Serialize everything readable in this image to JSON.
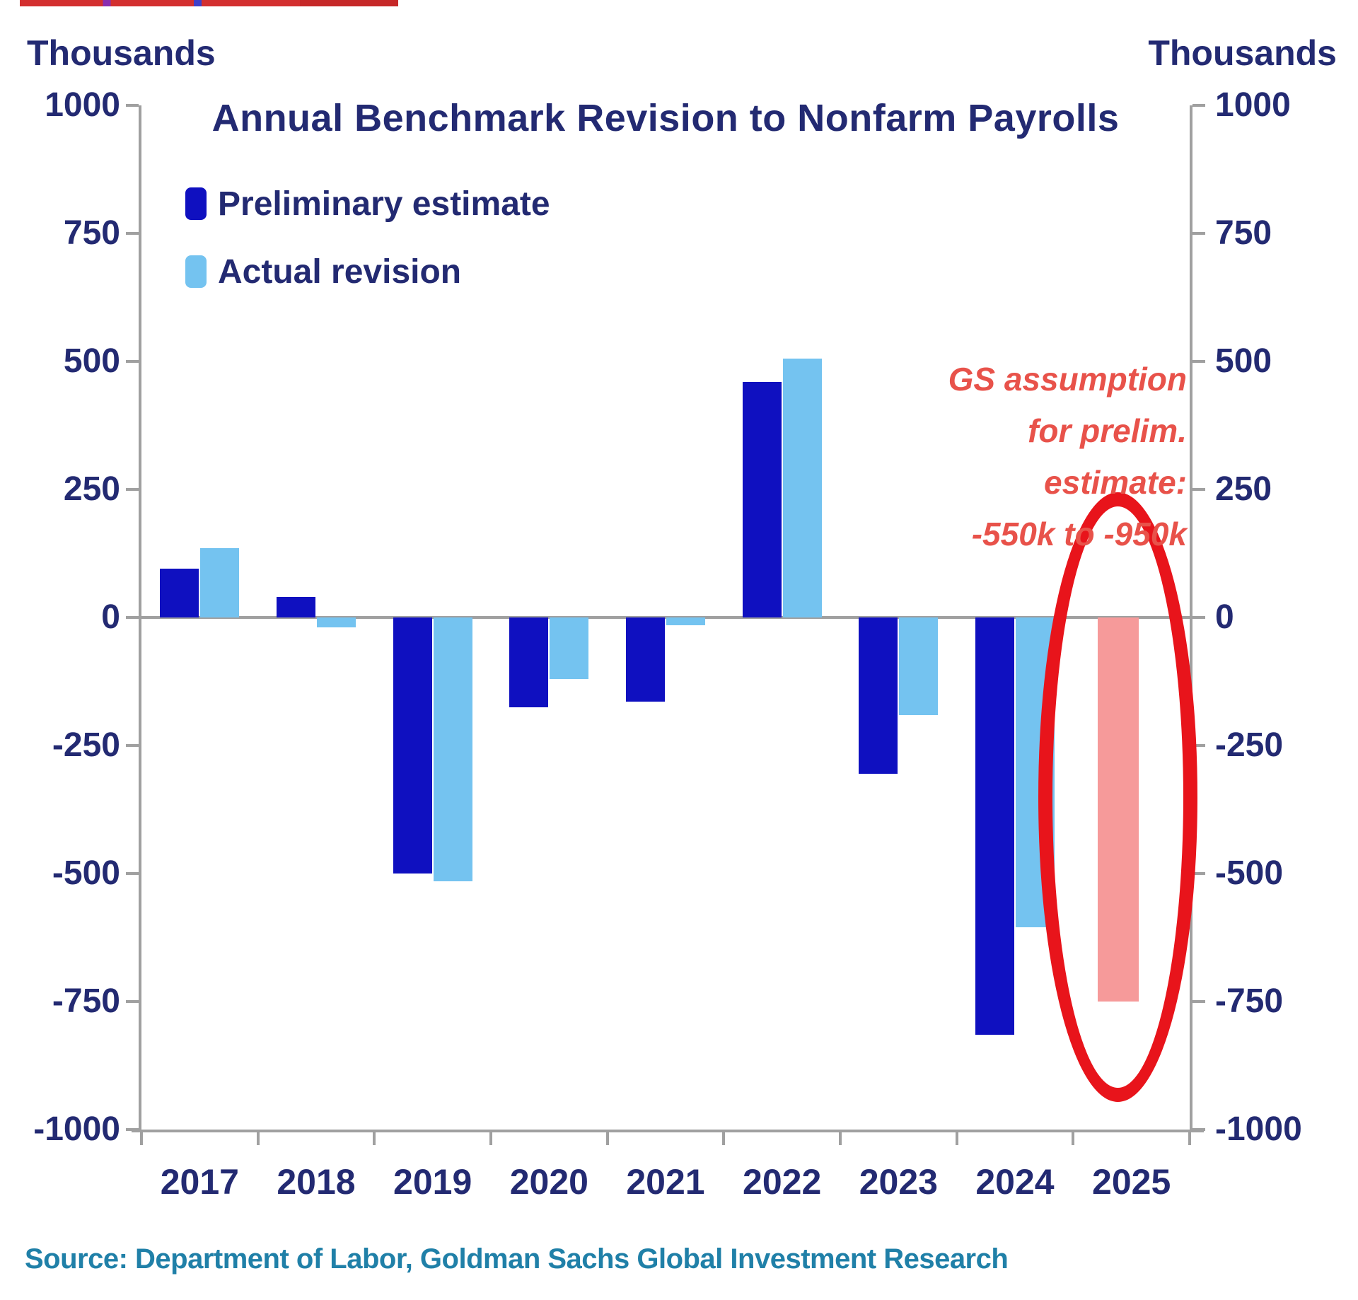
{
  "page": {
    "background": "#ffffff"
  },
  "chart_data": {
    "type": "bar",
    "title": "Annual Benchmark Revision to Nonfarm Payrolls",
    "ylabel_left": "Thousands",
    "ylabel_right": "Thousands",
    "ylim": [
      -1000,
      1000
    ],
    "yticks": [
      1000,
      750,
      500,
      250,
      0,
      -250,
      -500,
      -750,
      -1000
    ],
    "grid": false,
    "legend_position": "top-left",
    "categories": [
      "2017",
      "2018",
      "2019",
      "2020",
      "2021",
      "2022",
      "2023",
      "2024",
      "2025"
    ],
    "series": [
      {
        "name": "Preliminary estimate",
        "color": "#0f10c0",
        "values": [
          95,
          40,
          -500,
          -175,
          -165,
          460,
          -305,
          -815,
          null
        ]
      },
      {
        "name": "Actual revision",
        "color": "#74c3f0",
        "values": [
          135,
          -20,
          -515,
          -120,
          -15,
          505,
          -190,
          -605,
          null
        ]
      },
      {
        "name": "GS assumption",
        "color": "#f69a9a",
        "values": [
          null,
          null,
          null,
          null,
          null,
          null,
          null,
          null,
          -750
        ]
      }
    ],
    "annotation": {
      "lines": [
        "GS assumption",
        "for prelim.",
        "estimate:",
        "-550k to -950k"
      ],
      "color": "#e8524a",
      "refers_to": "2025"
    },
    "highlight": {
      "shape": "ellipse",
      "on_category": "2025",
      "color": "#e8141b"
    }
  },
  "colors": {
    "preliminary_blue": "#0f10c0",
    "actual_light_blue": "#74c3f0",
    "assumption_pink": "#f69a9a",
    "ellipse_red": "#e8141b",
    "annotation_red": "#e8524a",
    "axis_gray": "#a0a0a0",
    "text_navy": "#232a72",
    "source_teal": "#2080a8"
  },
  "footer": {
    "source": "Source: Department of Labor, Goldman Sachs Global Investment Research"
  }
}
